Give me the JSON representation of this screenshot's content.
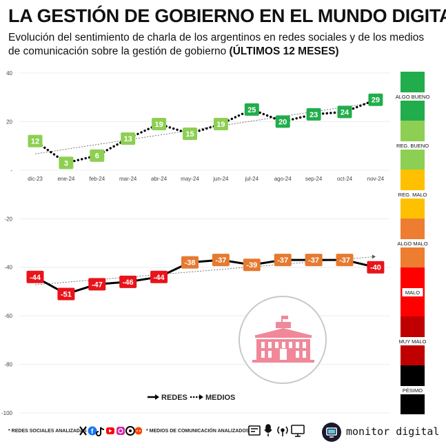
{
  "title": "LA GESTIÓN DE GOBIERNO EN EL MUNDO DIGITAL",
  "subtitle_main": "Evolución del sentimiento de charla de los argentinos en redes sociales y de los medios de comunicación sobre la gestión de gobierno ",
  "subtitle_bold": "(ÚLTIMOS 12 MESES)",
  "chart_data": {
    "type": "line",
    "categories": [
      "dic-23",
      "ene-24",
      "feb-24",
      "mar-24",
      "abr-24",
      "may-24",
      "jun-24",
      "jul-24",
      "ago-24",
      "sep-24",
      "oct-24",
      "nov-24"
    ],
    "series": [
      {
        "name": "REDES",
        "style": "solid",
        "values": [
          -44,
          -51,
          -47,
          -46,
          -44,
          -38,
          -37,
          -39,
          -37,
          -37,
          -37,
          -40
        ],
        "label_colors": [
          "#e8141b",
          "#e8141b",
          "#e8141b",
          "#e8141b",
          "#e8141b",
          "#e57a30",
          "#e57a30",
          "#e57a30",
          "#e57a30",
          "#e57a30",
          "#e57a30",
          "#e8141b"
        ]
      },
      {
        "name": "MEDIOS",
        "style": "dotted",
        "values": [
          12,
          3,
          6,
          13,
          19,
          15,
          19,
          25,
          20,
          23,
          24,
          29
        ],
        "label_colors": [
          "#8dcf53",
          "#8dcf53",
          "#8dcf53",
          "#8dcf53",
          "#8dcf53",
          "#8dcf53",
          "#8dcf53",
          "#22ad4c",
          "#22ad4c",
          "#22ad4c",
          "#22ad4c",
          "#22ad4c"
        ]
      }
    ],
    "y_ticks": [
      "40",
      "20",
      "-",
      "-20",
      "-40",
      "-60",
      "-80",
      "-100"
    ],
    "ylim": [
      -100,
      40
    ],
    "trendlines": true,
    "scale_bands": [
      {
        "label": "ALGO BUENO",
        "color": "#22ad4c"
      },
      {
        "label": "REG. BUENO",
        "color": "#8dcf53"
      },
      {
        "label": "REG. MALO",
        "color": "#ffc000"
      },
      {
        "label": "ALGO MALO",
        "color": "#ed7d31"
      },
      {
        "label": "MALO",
        "color": "#ff0000"
      },
      {
        "label": "MUY MALO",
        "color": "#c00000"
      },
      {
        "label": "PÉSIMO",
        "color": "#000000"
      }
    ]
  },
  "footer": {
    "social_label": "* REDES SOCIALES ANALIZADAS",
    "media_label": "* MEDIOS DE COMUNICACIÓN ANALIZADOS",
    "social_icons": [
      "x-icon",
      "facebook-icon",
      "tiktok-icon",
      "youtube-icon",
      "instagram-icon",
      "threads-icon",
      "reddit-icon"
    ],
    "media_icons": [
      "newspaper-icon",
      "microphone-icon",
      "radio-icon",
      "tv-icon"
    ],
    "brand": "monitor digital"
  }
}
